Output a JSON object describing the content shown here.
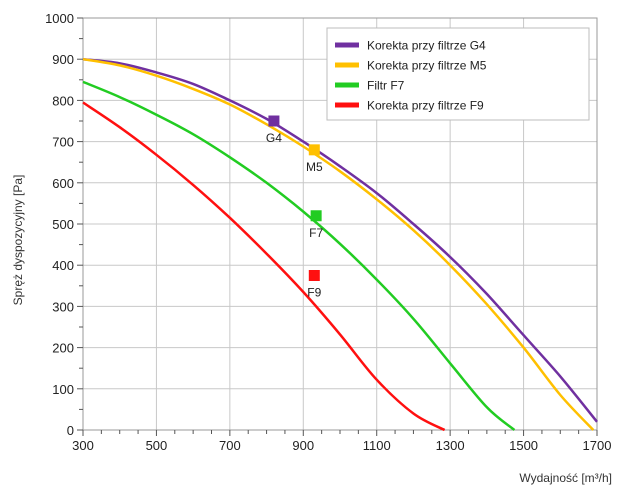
{
  "chart_data": {
    "type": "line",
    "title": "",
    "xlabel": "Wydajność [m³/h]",
    "ylabel": "Spręż dyspozycyjny [Pa]",
    "xlim": [
      300,
      1700
    ],
    "ylim": [
      0,
      1000
    ],
    "xticks": [
      300,
      500,
      700,
      900,
      1100,
      1300,
      1500,
      1700
    ],
    "yticks": [
      0,
      100,
      200,
      300,
      400,
      500,
      600,
      700,
      800,
      900,
      1000
    ],
    "grid": true,
    "legend_position": "top-right",
    "series": [
      {
        "name": "Korekta przy filtrze G4",
        "color": "#7030a0",
        "x": [
          300,
          400,
          500,
          600,
          700,
          800,
          900,
          1000,
          1100,
          1200,
          1300,
          1400,
          1500,
          1600,
          1700
        ],
        "y": [
          900,
          890,
          868,
          840,
          800,
          755,
          700,
          640,
          575,
          500,
          420,
          330,
          230,
          130,
          20
        ],
        "marker": {
          "x": 820,
          "y": 750,
          "label": "G4"
        }
      },
      {
        "name": "Korekta przy filtrze M5",
        "color": "#ffc000",
        "x": [
          300,
          400,
          500,
          600,
          700,
          800,
          900,
          1000,
          1100,
          1200,
          1300,
          1400,
          1500,
          1600,
          1690
        ],
        "y": [
          900,
          885,
          860,
          828,
          790,
          742,
          688,
          628,
          560,
          485,
          400,
          305,
          200,
          85,
          0
        ],
        "marker": {
          "x": 930,
          "y": 680,
          "label": "M5"
        }
      },
      {
        "name": "Filtr F7",
        "color": "#22cc22",
        "x": [
          300,
          400,
          500,
          600,
          700,
          800,
          900,
          1000,
          1100,
          1200,
          1300,
          1400,
          1475
        ],
        "y": [
          845,
          808,
          765,
          718,
          662,
          600,
          530,
          452,
          365,
          270,
          162,
          55,
          0
        ],
        "marker": {
          "x": 935,
          "y": 520,
          "label": "F7"
        }
      },
      {
        "name": "Korekta przy filtrze F9",
        "color": "#ff1010",
        "x": [
          300,
          400,
          500,
          600,
          700,
          800,
          900,
          1000,
          1100,
          1200,
          1285
        ],
        "y": [
          795,
          735,
          668,
          595,
          515,
          428,
          335,
          232,
          122,
          40,
          0
        ],
        "marker": {
          "x": 930,
          "y": 375,
          "label": "F9"
        }
      }
    ]
  }
}
